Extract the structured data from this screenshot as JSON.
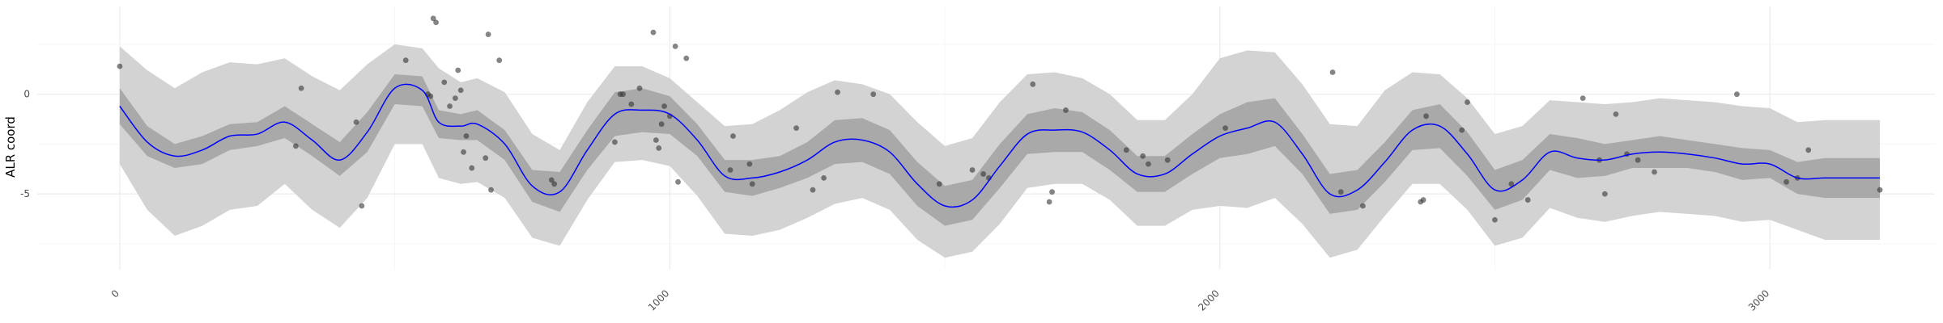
{
  "chart_data": {
    "type": "line",
    "title": "",
    "xlabel": "",
    "ylabel": "ALR coord",
    "xlim": [
      -150,
      3300
    ],
    "ylim": [
      -8.8,
      4.4
    ],
    "x_ticks": [
      0,
      1000,
      2000,
      3000
    ],
    "x_tick_labels": [
      "0",
      "1000",
      "2000",
      "3000"
    ],
    "y_ticks": [
      0,
      -5
    ],
    "y_tick_labels": [
      "0",
      "-5"
    ],
    "grid": true,
    "legend": "none",
    "colors": {
      "line": "#0000ff",
      "inner_band": "#a9a9a9",
      "outer_band": "#d3d3d3",
      "points": "#333333",
      "grid": "#ebebeb"
    },
    "series": [
      {
        "role": "mean-line",
        "x": [
          0,
          50,
          100,
          150,
          200,
          250,
          300,
          350,
          400,
          450,
          500,
          550,
          580,
          620,
          650,
          700,
          750,
          800,
          850,
          900,
          950,
          1000,
          1050,
          1100,
          1150,
          1200,
          1250,
          1300,
          1350,
          1400,
          1450,
          1500,
          1550,
          1600,
          1650,
          1700,
          1750,
          1800,
          1850,
          1900,
          1950,
          2000,
          2050,
          2100,
          2150,
          2200,
          2250,
          2300,
          2350,
          2400,
          2450,
          2500,
          2550,
          2600,
          2650,
          2700,
          2750,
          2800,
          2850,
          2900,
          2950,
          3000,
          3050,
          3100,
          3150,
          3200
        ],
        "y": [
          -0.6,
          -2.4,
          -3.1,
          -2.8,
          -2.1,
          -2.0,
          -1.4,
          -2.3,
          -3.3,
          -1.9,
          0.3,
          0.2,
          -1.4,
          -1.6,
          -1.5,
          -2.5,
          -4.6,
          -4.9,
          -2.8,
          -1.0,
          -0.8,
          -1.0,
          -2.3,
          -4.1,
          -4.2,
          -3.9,
          -3.3,
          -2.4,
          -2.3,
          -2.9,
          -4.5,
          -5.6,
          -5.3,
          -3.6,
          -2.0,
          -1.8,
          -1.9,
          -2.8,
          -4.0,
          -4.0,
          -3.0,
          -2.1,
          -1.7,
          -1.4,
          -3.0,
          -5.0,
          -4.8,
          -3.4,
          -1.8,
          -1.6,
          -3.0,
          -4.8,
          -4.3,
          -2.9,
          -3.2,
          -3.3,
          -3.0,
          -2.9,
          -3.0,
          -3.2,
          -3.5,
          -3.5,
          -4.2,
          -4.2,
          -4.2,
          -4.2
        ]
      },
      {
        "role": "inner-band-upper",
        "y": [
          0.3,
          -1.6,
          -2.5,
          -2.1,
          -1.5,
          -1.4,
          -0.6,
          -1.5,
          -2.4,
          -0.9,
          1.0,
          0.9,
          -0.8,
          -1.0,
          -0.8,
          -1.8,
          -3.8,
          -3.9,
          -1.8,
          0.1,
          0.3,
          -0.1,
          -1.5,
          -3.3,
          -3.3,
          -3.1,
          -2.4,
          -1.3,
          -1.2,
          -1.8,
          -3.4,
          -4.6,
          -4.3,
          -2.5,
          -1.0,
          -0.7,
          -0.9,
          -1.8,
          -3.1,
          -3.1,
          -2.0,
          -1.0,
          -0.4,
          -0.2,
          -2.0,
          -4.0,
          -3.8,
          -2.4,
          -0.8,
          -0.5,
          -1.9,
          -3.8,
          -3.3,
          -2.0,
          -2.2,
          -2.5,
          -2.3,
          -2.1,
          -2.3,
          -2.5,
          -2.7,
          -2.8,
          -3.4,
          -3.2,
          -3.2,
          -3.2
        ]
      },
      {
        "role": "inner-band-lower",
        "y": [
          -1.5,
          -3.1,
          -3.7,
          -3.5,
          -2.8,
          -2.6,
          -2.2,
          -3.1,
          -4.1,
          -2.9,
          -0.5,
          -0.6,
          -2.2,
          -2.3,
          -2.3,
          -3.3,
          -5.4,
          -5.9,
          -3.8,
          -2.1,
          -1.9,
          -2.0,
          -3.1,
          -4.9,
          -5.1,
          -4.7,
          -4.2,
          -3.5,
          -3.4,
          -4.0,
          -5.6,
          -6.6,
          -6.3,
          -4.7,
          -3.0,
          -2.9,
          -2.9,
          -3.8,
          -4.9,
          -4.9,
          -4.0,
          -3.2,
          -3.0,
          -2.6,
          -4.0,
          -6.0,
          -5.8,
          -4.4,
          -2.8,
          -2.7,
          -4.1,
          -5.8,
          -5.3,
          -3.8,
          -4.2,
          -4.1,
          -3.7,
          -3.7,
          -3.7,
          -3.9,
          -4.3,
          -4.2,
          -5.0,
          -5.2,
          -5.2,
          -5.2
        ]
      },
      {
        "role": "outer-band-upper",
        "y": [
          2.4,
          1.2,
          0.3,
          1.1,
          1.6,
          1.5,
          1.8,
          0.9,
          0.2,
          1.5,
          2.5,
          2.3,
          1.3,
          0.6,
          0.8,
          0.1,
          -2.0,
          -2.8,
          -0.4,
          1.4,
          1.4,
          0.8,
          -0.4,
          -1.6,
          -1.5,
          -0.8,
          0.1,
          0.7,
          0.5,
          0.0,
          -1.4,
          -2.6,
          -2.2,
          -0.4,
          1.0,
          1.1,
          0.8,
          0.0,
          -1.3,
          -1.3,
          0.0,
          1.8,
          2.2,
          2.1,
          0.5,
          -1.5,
          -1.6,
          0.2,
          1.1,
          1.0,
          -0.2,
          -2.0,
          -1.6,
          -0.3,
          -0.4,
          -0.5,
          -0.4,
          -0.2,
          -0.3,
          -0.4,
          -0.6,
          -0.7,
          -1.4,
          -1.3,
          -1.3,
          -1.3
        ]
      },
      {
        "role": "outer-band-lower",
        "y": [
          -3.5,
          -5.8,
          -7.1,
          -6.6,
          -5.8,
          -5.6,
          -4.5,
          -5.8,
          -6.7,
          -5.2,
          -2.5,
          -2.5,
          -4.2,
          -4.5,
          -4.4,
          -5.2,
          -7.2,
          -7.6,
          -5.3,
          -3.4,
          -3.3,
          -3.6,
          -5.1,
          -7.0,
          -7.1,
          -6.8,
          -6.2,
          -5.5,
          -5.2,
          -5.8,
          -7.3,
          -8.2,
          -7.9,
          -6.5,
          -4.7,
          -4.5,
          -4.5,
          -5.3,
          -6.6,
          -6.6,
          -5.8,
          -5.6,
          -5.7,
          -5.2,
          -6.5,
          -8.2,
          -7.8,
          -6.1,
          -4.5,
          -4.5,
          -5.8,
          -7.6,
          -7.2,
          -5.7,
          -6.2,
          -6.4,
          -6.1,
          -5.9,
          -6.0,
          -6.1,
          -6.4,
          -6.3,
          -6.8,
          -7.3,
          -7.3,
          -7.3
        ]
      },
      {
        "role": "observations",
        "points": [
          [
            0,
            1.4
          ],
          [
            320,
            -2.6
          ],
          [
            330,
            0.3
          ],
          [
            430,
            -1.4
          ],
          [
            440,
            -5.6
          ],
          [
            520,
            1.7
          ],
          [
            570,
            3.8
          ],
          [
            575,
            3.6
          ],
          [
            560,
            0.0
          ],
          [
            565,
            -0.1
          ],
          [
            590,
            0.6
          ],
          [
            600,
            -0.6
          ],
          [
            610,
            -0.2
          ],
          [
            615,
            1.2
          ],
          [
            620,
            0.2
          ],
          [
            625,
            -2.9
          ],
          [
            630,
            -2.1
          ],
          [
            640,
            -3.7
          ],
          [
            665,
            -3.2
          ],
          [
            670,
            3.0
          ],
          [
            675,
            -4.8
          ],
          [
            690,
            1.7
          ],
          [
            785,
            -4.3
          ],
          [
            790,
            -4.5
          ],
          [
            900,
            -2.4
          ],
          [
            910,
            0.0
          ],
          [
            915,
            0.0
          ],
          [
            930,
            -0.5
          ],
          [
            945,
            0.3
          ],
          [
            970,
            3.1
          ],
          [
            975,
            -2.3
          ],
          [
            980,
            -2.7
          ],
          [
            985,
            -1.5
          ],
          [
            990,
            -0.6
          ],
          [
            1000,
            -1.1
          ],
          [
            1010,
            2.4
          ],
          [
            1015,
            -4.4
          ],
          [
            1030,
            1.8
          ],
          [
            1115,
            -2.1
          ],
          [
            1110,
            -3.8
          ],
          [
            1145,
            -3.5
          ],
          [
            1150,
            -4.5
          ],
          [
            1230,
            -1.7
          ],
          [
            1260,
            -4.8
          ],
          [
            1280,
            -4.2
          ],
          [
            1305,
            0.1
          ],
          [
            1370,
            0.0
          ],
          [
            1490,
            -4.5
          ],
          [
            1550,
            -3.8
          ],
          [
            1570,
            -4.0
          ],
          [
            1580,
            -4.2
          ],
          [
            1660,
            0.5
          ],
          [
            1690,
            -5.4
          ],
          [
            1695,
            -4.9
          ],
          [
            1720,
            -0.8
          ],
          [
            1830,
            -2.8
          ],
          [
            1860,
            -3.1
          ],
          [
            1870,
            -3.5
          ],
          [
            1905,
            -3.3
          ],
          [
            2010,
            -1.7
          ],
          [
            2205,
            1.1
          ],
          [
            2220,
            -4.9
          ],
          [
            2260,
            -5.6
          ],
          [
            2365,
            -5.4
          ],
          [
            2370,
            -5.3
          ],
          [
            2375,
            -1.1
          ],
          [
            2440,
            -1.8
          ],
          [
            2450,
            -0.4
          ],
          [
            2500,
            -6.3
          ],
          [
            2530,
            -4.5
          ],
          [
            2560,
            -5.3
          ],
          [
            2660,
            -0.2
          ],
          [
            2690,
            -3.3
          ],
          [
            2700,
            -5.0
          ],
          [
            2720,
            -1.0
          ],
          [
            2740,
            -3.0
          ],
          [
            2760,
            -3.3
          ],
          [
            2790,
            -3.9
          ],
          [
            2940,
            0.0
          ],
          [
            3030,
            -4.4
          ],
          [
            3050,
            -4.2
          ],
          [
            3070,
            -2.8
          ],
          [
            3200,
            -4.8
          ]
        ]
      }
    ]
  }
}
